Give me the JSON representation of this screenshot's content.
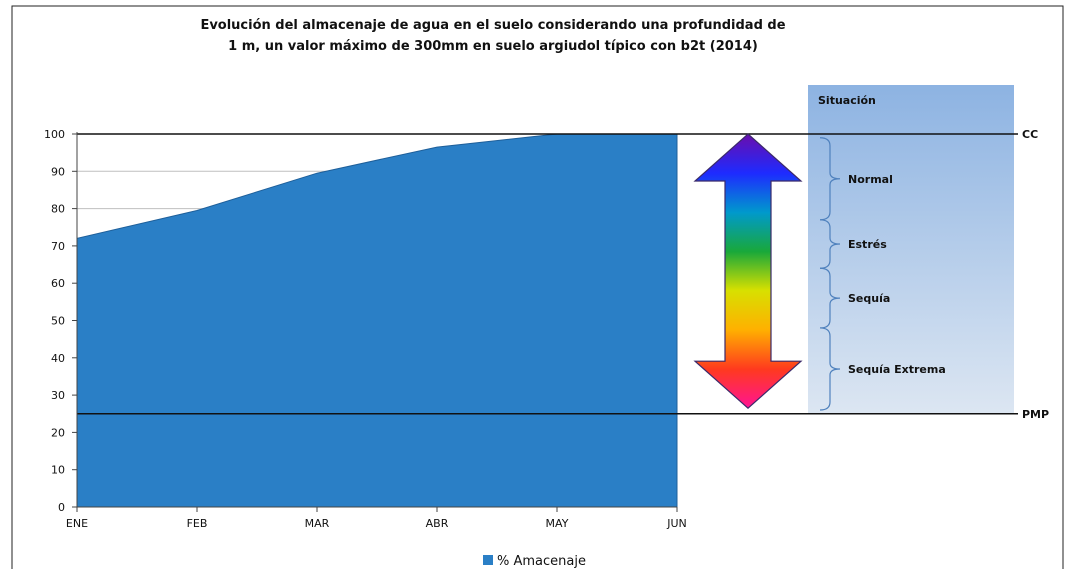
{
  "chart_data": {
    "type": "area",
    "title": "Evolución del almacenaje de agua en el suelo considerando una profundidad de",
    "subtitle": "1 m,  un valor máximo de 300mm en suelo argiudol típico con b2t (2014)",
    "categories": [
      "ENE",
      "FEB",
      "MAR",
      "ABR",
      "MAY",
      "JUN"
    ],
    "series": [
      {
        "name": "% Amacenaje",
        "values": [
          72,
          79.5,
          89.5,
          96.5,
          100,
          100
        ]
      }
    ],
    "ylim": [
      0,
      100
    ],
    "yticks": [
      0,
      10,
      20,
      30,
      40,
      50,
      60,
      70,
      80,
      90,
      100
    ],
    "grid": true,
    "legend": "bottom",
    "reference_lines": [
      {
        "label": "CC",
        "value": 100
      },
      {
        "label": "PMP",
        "value": 25
      }
    ],
    "situation_panel": {
      "header": "Situación",
      "zones": [
        {
          "label": "Normal",
          "from": 77,
          "to": 99
        },
        {
          "label": "Estrés",
          "from": 64,
          "to": 77
        },
        {
          "label": "Sequía",
          "from": 48,
          "to": 64
        },
        {
          "label": "Sequía Extrema",
          "from": 26,
          "to": 48
        }
      ]
    },
    "colors": {
      "area": "#2A7FC6",
      "area_stroke": "#1E5F9A",
      "panel_top": "#8DB3E2",
      "panel_bottom": "#DCE6F2",
      "brace": "#4F81BD",
      "gradient": [
        "#6A0DAD",
        "#1E2BFF",
        "#0099CC",
        "#19A83A",
        "#D8E000",
        "#FFB000",
        "#FF3A1E",
        "#FF1493"
      ]
    }
  }
}
